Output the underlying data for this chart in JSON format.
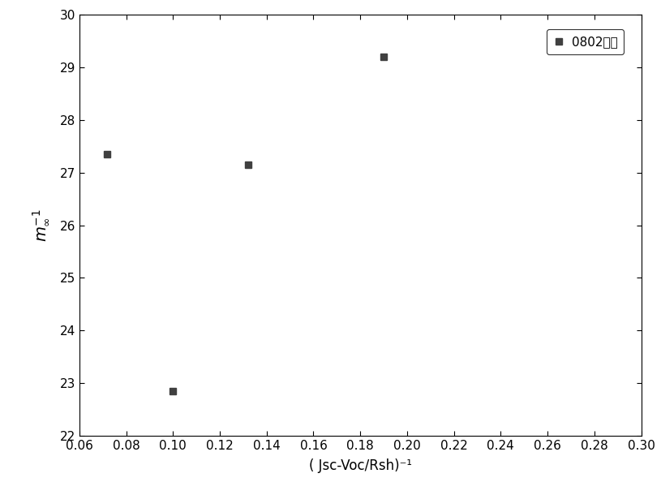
{
  "x_data": [
    0.072,
    0.1,
    0.132,
    0.19
  ],
  "y_data": [
    27.35,
    22.85,
    27.15,
    29.2
  ],
  "xlim": [
    0.06,
    0.3
  ],
  "ylim": [
    22,
    30
  ],
  "xticks": [
    0.06,
    0.08,
    0.1,
    0.12,
    0.14,
    0.16,
    0.18,
    0.2,
    0.22,
    0.24,
    0.26,
    0.28,
    0.3
  ],
  "yticks": [
    22,
    23,
    24,
    25,
    26,
    27,
    28,
    29,
    30
  ],
  "xlabel": "( Jsc-Voc/Rsh)⁻¹",
  "ylabel_main": "m",
  "ylabel_sub": "∞",
  "ylabel_sup": "-1",
  "legend_label": "0802组件",
  "marker": "s",
  "marker_color": "#404040",
  "marker_size": 6,
  "background_color": "#ffffff",
  "grid": false,
  "title": "",
  "tick_fontsize": 11,
  "label_fontsize": 12
}
